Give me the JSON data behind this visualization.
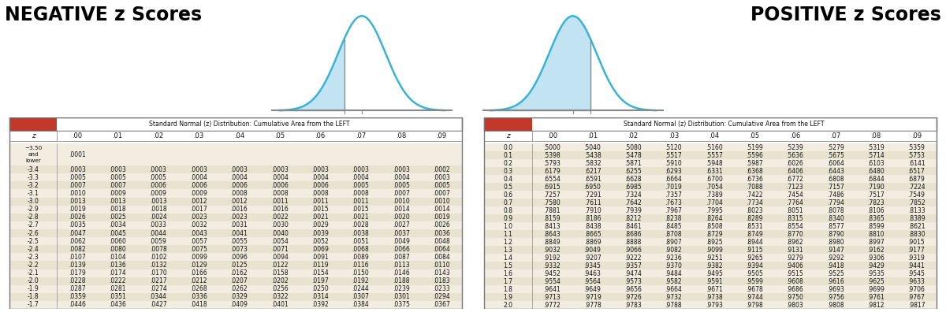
{
  "neg_title": "NEGATIVE z Scores",
  "pos_title": "POSITIVE z Scores",
  "table_title": "Standard Normal (z) Distribution: Cumulative Area from the LEFT",
  "col_headers": [
    ".00",
    ".01",
    ".02",
    ".03",
    ".04",
    ".05",
    ".06",
    ".07",
    ".08",
    ".09"
  ],
  "neg_z_labels": [
    "-3.50",
    "-3.4",
    "-3.3",
    "-3.2",
    "-3.1",
    "-3.0",
    "-2.9",
    "-2.8",
    "-2.7",
    "-2.6",
    "-2.5",
    "-2.4",
    "-2.3",
    "-2.2",
    "-2.1",
    "-2.0",
    "-1.9",
    "-1.8",
    "-1.7"
  ],
  "neg_data": [
    [
      ".0001",
      "",
      "",
      "",
      "",
      "",
      "",
      "",
      "",
      ""
    ],
    [
      ".0003",
      ".0003",
      ".0003",
      ".0003",
      ".0003",
      ".0003",
      ".0003",
      ".0003",
      ".0003",
      ".0002"
    ],
    [
      ".0005",
      ".0005",
      ".0005",
      ".0004",
      ".0004",
      ".0004",
      ".0004",
      ".0004",
      ".0004",
      ".0003"
    ],
    [
      ".0007",
      ".0007",
      ".0006",
      ".0006",
      ".0006",
      ".0006",
      ".0006",
      ".0005",
      ".0005",
      ".0005"
    ],
    [
      ".0010",
      ".0009",
      ".0009",
      ".0009",
      ".0008",
      ".0008",
      ".0008",
      ".0008",
      ".0007",
      ".0007"
    ],
    [
      ".0013",
      ".0013",
      ".0013",
      ".0012",
      ".0012",
      ".0011",
      ".0011",
      ".0011",
      ".0010",
      ".0010"
    ],
    [
      ".0019",
      ".0018",
      ".0018",
      ".0017",
      ".0016",
      ".0016",
      ".0015",
      ".0015",
      ".0014",
      ".0014"
    ],
    [
      ".0026",
      ".0025",
      ".0024",
      ".0023",
      ".0023",
      ".0022",
      ".0021",
      ".0021",
      ".0020",
      ".0019"
    ],
    [
      ".0035",
      ".0034",
      ".0033",
      ".0032",
      ".0031",
      ".0030",
      ".0029",
      ".0028",
      ".0027",
      ".0026"
    ],
    [
      ".0047",
      ".0045",
      ".0044",
      ".0043",
      ".0041",
      ".0040",
      ".0039",
      ".0038",
      ".0037",
      ".0036"
    ],
    [
      ".0062",
      ".0060",
      ".0059",
      ".0057",
      ".0055",
      ".0054",
      ".0052",
      ".0051",
      ".0049",
      ".0048"
    ],
    [
      ".0082",
      ".0080",
      ".0078",
      ".0075",
      ".0073",
      ".0071",
      ".0069",
      ".0068",
      ".0066",
      ".0064"
    ],
    [
      ".0107",
      ".0104",
      ".0102",
      ".0099",
      ".0096",
      ".0094",
      ".0091",
      ".0089",
      ".0087",
      ".0084"
    ],
    [
      ".0139",
      ".0136",
      ".0132",
      ".0129",
      ".0125",
      ".0122",
      ".0119",
      ".0116",
      ".0113",
      ".0110"
    ],
    [
      ".0179",
      ".0174",
      ".0170",
      ".0166",
      ".0162",
      ".0158",
      ".0154",
      ".0150",
      ".0146",
      ".0143"
    ],
    [
      ".0228",
      ".0222",
      ".0217",
      ".0212",
      ".0207",
      ".0202",
      ".0197",
      ".0192",
      ".0188",
      ".0183"
    ],
    [
      ".0287",
      ".0281",
      ".0274",
      ".0268",
      ".0262",
      ".0256",
      ".0250",
      ".0244",
      ".0239",
      ".0233"
    ],
    [
      ".0359",
      ".0351",
      ".0344",
      ".0336",
      ".0329",
      ".0322",
      ".0314",
      ".0307",
      ".0301",
      ".0294"
    ],
    [
      ".0446",
      ".0436",
      ".0427",
      ".0418",
      ".0409",
      ".0401",
      ".0392",
      ".0384",
      ".0375",
      ".0367"
    ]
  ],
  "pos_z_labels": [
    "0.0",
    "0.1",
    "0.2",
    "0.3",
    "0.4",
    "0.5",
    "0.6",
    "0.7",
    "0.8",
    "0.9",
    "1.0",
    "1.1",
    "1.2",
    "1.3",
    "1.4",
    "1.5",
    "1.6",
    "1.7",
    "1.8",
    "1.9",
    "2.0"
  ],
  "pos_data": [
    [
      ".5000",
      ".5040",
      ".5080",
      ".5120",
      ".5160",
      ".5199",
      ".5239",
      ".5279",
      ".5319",
      ".5359"
    ],
    [
      ".5398",
      ".5438",
      ".5478",
      ".5517",
      ".5557",
      ".5596",
      ".5636",
      ".5675",
      ".5714",
      ".5753"
    ],
    [
      ".5793",
      ".5832",
      ".5871",
      ".5910",
      ".5948",
      ".5987",
      ".6026",
      ".6064",
      ".6103",
      ".6141"
    ],
    [
      ".6179",
      ".6217",
      ".6255",
      ".6293",
      ".6331",
      ".6368",
      ".6406",
      ".6443",
      ".6480",
      ".6517"
    ],
    [
      ".6554",
      ".6591",
      ".6628",
      ".6664",
      ".6700",
      ".6736",
      ".6772",
      ".6808",
      ".6844",
      ".6879"
    ],
    [
      ".6915",
      ".6950",
      ".6985",
      ".7019",
      ".7054",
      ".7088",
      ".7123",
      ".7157",
      ".7190",
      ".7224"
    ],
    [
      ".7257",
      ".7291",
      ".7324",
      ".7357",
      ".7389",
      ".7422",
      ".7454",
      ".7486",
      ".7517",
      ".7549"
    ],
    [
      ".7580",
      ".7611",
      ".7642",
      ".7673",
      ".7704",
      ".7734",
      ".7764",
      ".7794",
      ".7823",
      ".7852"
    ],
    [
      ".7881",
      ".7910",
      ".7939",
      ".7967",
      ".7995",
      ".8023",
      ".8051",
      ".8078",
      ".8106",
      ".8133"
    ],
    [
      ".8159",
      ".8186",
      ".8212",
      ".8238",
      ".8264",
      ".8289",
      ".8315",
      ".8340",
      ".8365",
      ".8389"
    ],
    [
      ".8413",
      ".8438",
      ".8461",
      ".8485",
      ".8508",
      ".8531",
      ".8554",
      ".8577",
      ".8599",
      ".8621"
    ],
    [
      ".8643",
      ".8665",
      ".8686",
      ".8708",
      ".8729",
      ".8749",
      ".8770",
      ".8790",
      ".8810",
      ".8830"
    ],
    [
      ".8849",
      ".8869",
      ".8888",
      ".8907",
      ".8925",
      ".8944",
      ".8962",
      ".8980",
      ".8997",
      ".9015"
    ],
    [
      ".9032",
      ".9049",
      ".9066",
      ".9082",
      ".9099",
      ".9115",
      ".9131",
      ".9147",
      ".9162",
      ".9177"
    ],
    [
      ".9192",
      ".9207",
      ".9222",
      ".9236",
      ".9251",
      ".9265",
      ".9279",
      ".9292",
      ".9306",
      ".9319"
    ],
    [
      ".9332",
      ".9345",
      ".9357",
      ".9370",
      ".9382",
      ".9394",
      ".9406",
      ".9418",
      ".9429",
      ".9441"
    ],
    [
      ".9452",
      ".9463",
      ".9474",
      ".9484",
      ".9495",
      ".9505",
      ".9515",
      ".9525",
      ".9535",
      ".9545"
    ],
    [
      ".9554",
      ".9564",
      ".9573",
      ".9582",
      ".9591",
      ".9599",
      ".9608",
      ".9616",
      ".9625",
      ".9633"
    ],
    [
      ".9641",
      ".9649",
      ".9656",
      ".9664",
      ".9671",
      ".9678",
      ".9686",
      ".9693",
      ".9699",
      ".9706"
    ],
    [
      ".9713",
      ".9719",
      ".9726",
      ".9732",
      ".9738",
      ".9744",
      ".9750",
      ".9756",
      ".9761",
      ".9767"
    ],
    [
      ".9772",
      ".9778",
      ".9783",
      ".9788",
      ".9793",
      ".9798",
      ".9803",
      ".9808",
      ".9812",
      ".9817"
    ]
  ],
  "header_bg": "#c0392b",
  "border_color": "#777777",
  "row_colors": [
    "#f2ede0",
    "#e8e2d0"
  ],
  "cell_text_color": "#111111",
  "curve_color": "#3ab4d4",
  "curve_fill_color": "#b8dff0",
  "axis_line_color": "#888888",
  "title_color": "#000000",
  "white": "#ffffff",
  "fig_bg": "#ffffff"
}
